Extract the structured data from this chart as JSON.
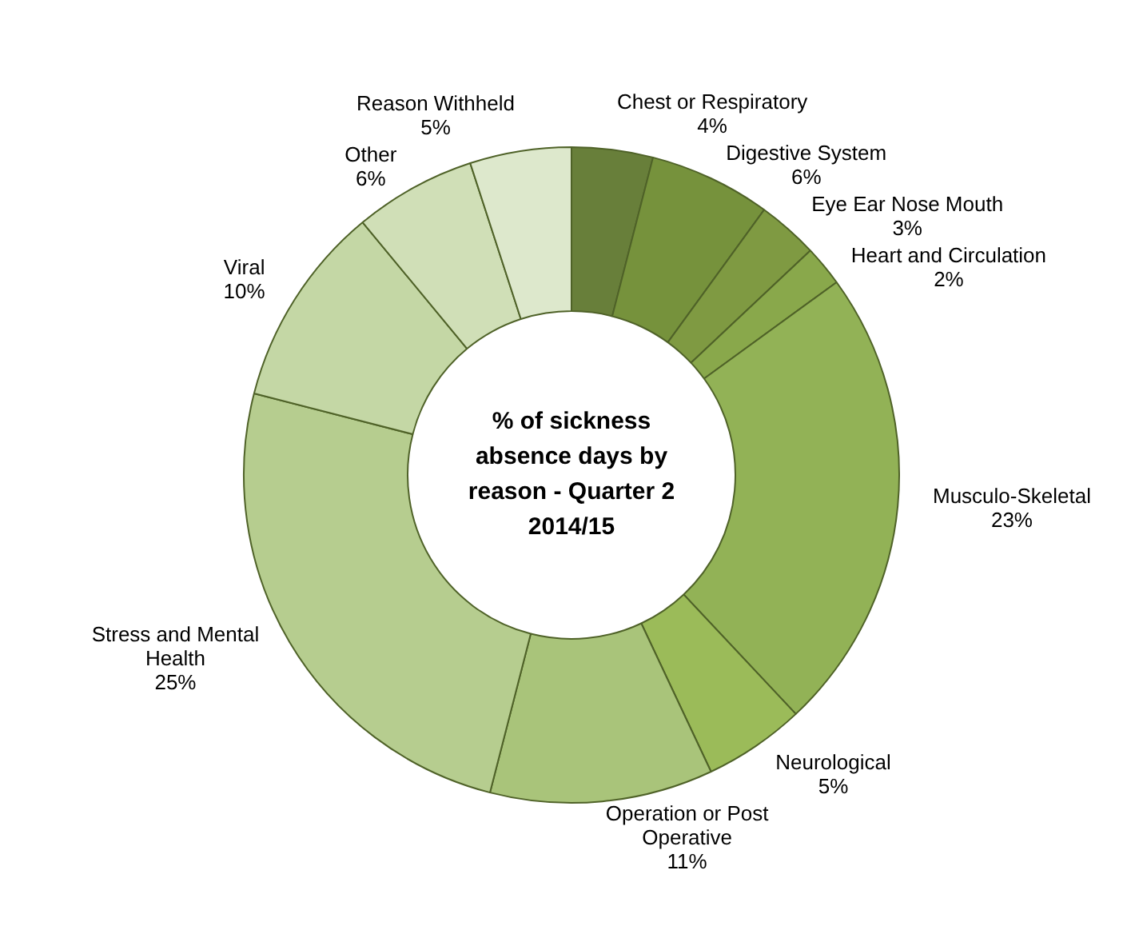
{
  "chart_data": {
    "type": "donut",
    "title": "% of sickness absence days by reason - Quarter 2 2014/15",
    "categories": [
      "Chest or Respiratory",
      "Digestive System",
      "Eye Ear Nose Mouth",
      "Heart and Circulation",
      "Musculo-Skeletal",
      "Neurological",
      "Operation or Post Operative",
      "Stress and Mental Health",
      "Viral",
      "Other",
      "Reason Withheld"
    ],
    "values": [
      4,
      6,
      3,
      2,
      23,
      5,
      11,
      25,
      10,
      6,
      5
    ],
    "value_labels": [
      "4%",
      "6%",
      "3%",
      "2%",
      "23%",
      "5%",
      "11%",
      "25%",
      "10%",
      "6%",
      "5%"
    ],
    "colors": [
      "#687f3a",
      "#76923c",
      "#7f9a42",
      "#89a84b",
      "#92b256",
      "#9bbb59",
      "#a9c47a",
      "#b6cd8f",
      "#c4d7a5",
      "#d0dfb7",
      "#dde8cc"
    ],
    "legend": false
  }
}
